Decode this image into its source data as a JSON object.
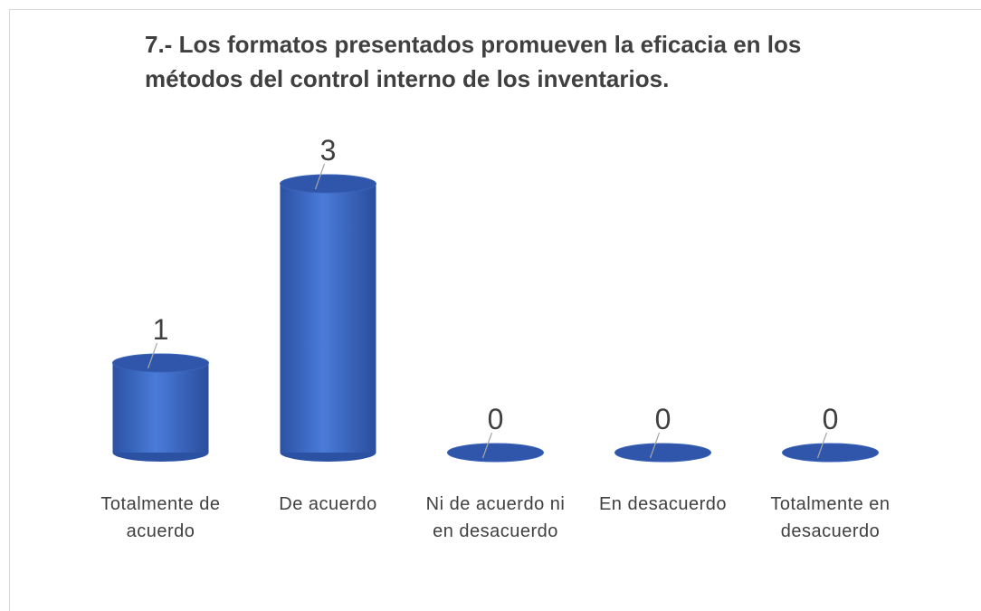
{
  "chart_data": {
    "type": "bar",
    "title": "7.- Los formatos presentados promueven la eficacia en los métodos del control interno de los inventarios.",
    "categories": [
      "Totalmente de acuerdo",
      "De acuerdo",
      "Ni de acuerdo ni en desacuerdo",
      "En desacuerdo",
      "Totalmente en desacuerdo"
    ],
    "values": [
      1,
      3,
      0,
      0,
      0
    ],
    "color": "#4472c4"
  }
}
